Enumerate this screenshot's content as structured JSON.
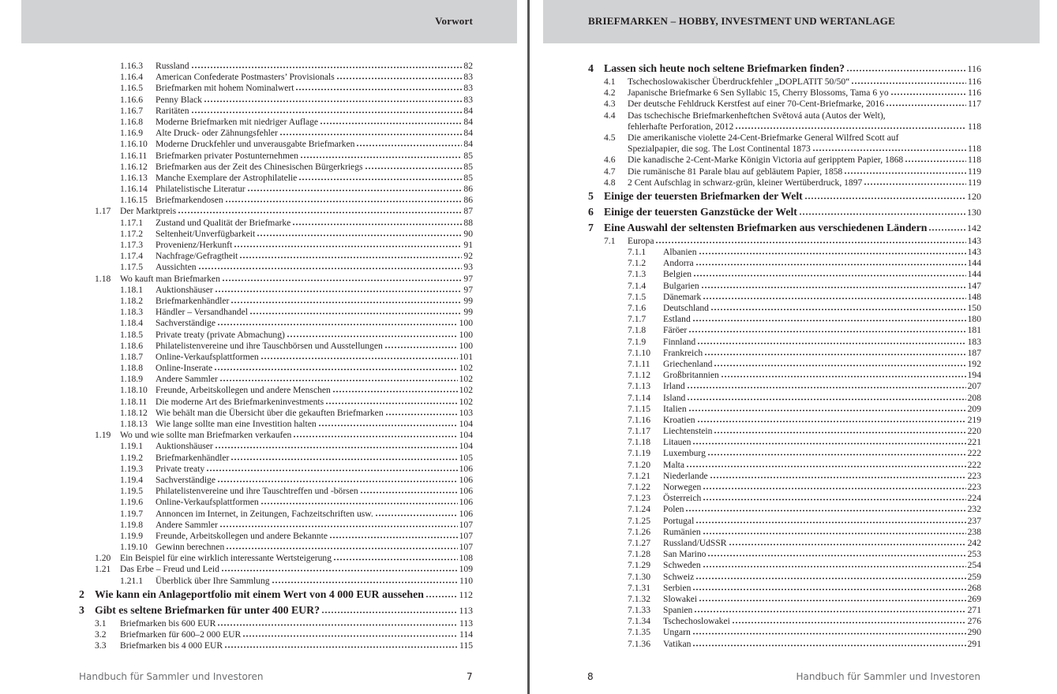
{
  "left_page": {
    "header": "Vorwort",
    "footer": "Handbuch für Sammler und Investoren",
    "page_number": "7",
    "entries": [
      {
        "level": 3,
        "num": "1.16.3",
        "title": "Russland",
        "page": "82"
      },
      {
        "level": 3,
        "num": "1.16.4",
        "title": "American Confederate Postmasters’ Provisionals",
        "page": "83"
      },
      {
        "level": 3,
        "num": "1.16.5",
        "title": "Briefmarken mit hohem Nominalwert",
        "page": "83"
      },
      {
        "level": 3,
        "num": "1.16.6",
        "title": "Penny Black",
        "page": "83"
      },
      {
        "level": 3,
        "num": "1.16.7",
        "title": "Raritäten",
        "page": "84"
      },
      {
        "level": 3,
        "num": "1.16.8",
        "title": "Moderne Briefmarken mit niedriger Auflage",
        "page": "84"
      },
      {
        "level": 3,
        "num": "1.16.9",
        "title": "Alte Druck- oder Zähnungsfehler",
        "page": "84"
      },
      {
        "level": 3,
        "num": "1.16.10",
        "title": "Moderne Druckfehler und unverausgabte Briefmarken",
        "page": "84"
      },
      {
        "level": 3,
        "num": "1.16.11",
        "title": "Briefmarken privater Postunternehmen",
        "page": "85"
      },
      {
        "level": 3,
        "num": "1.16.12",
        "title": "Briefmarken aus der Zeit des Chinesischen Bürgerkriegs",
        "page": "85"
      },
      {
        "level": 3,
        "num": "1.16.13",
        "title": "Manche Exemplare der Astrophilatelie",
        "page": "85"
      },
      {
        "level": 3,
        "num": "1.16.14",
        "title": "Philatelistische Literatur",
        "page": "86"
      },
      {
        "level": 3,
        "num": "1.16.15",
        "title": "Briefmarkendosen",
        "page": "86"
      },
      {
        "level": 2,
        "num": "1.17",
        "title": "Der Marktpreis",
        "page": "87"
      },
      {
        "level": 3,
        "num": "1.17.1",
        "title": "Zustand und Qualität der Briefmarke",
        "page": "88"
      },
      {
        "level": 3,
        "num": "1.17.2",
        "title": "Seltenheit/Unverfügbarkeit",
        "page": "90"
      },
      {
        "level": 3,
        "num": "1.17.3",
        "title": "Provenienz/Herkunft",
        "page": "91"
      },
      {
        "level": 3,
        "num": "1.17.4",
        "title": "Nachfrage/Gefragtheit",
        "page": "92"
      },
      {
        "level": 3,
        "num": "1.17.5",
        "title": "Aussichten",
        "page": "93"
      },
      {
        "level": 2,
        "num": "1.18",
        "title": "Wo kauft man Briefmarken",
        "page": "97"
      },
      {
        "level": 3,
        "num": "1.18.1",
        "title": "Auktionshäuser",
        "page": "97"
      },
      {
        "level": 3,
        "num": "1.18.2",
        "title": "Briefmarkenhändler",
        "page": "99"
      },
      {
        "level": 3,
        "num": "1.18.3",
        "title": "Händler – Versandhandel",
        "page": "99"
      },
      {
        "level": 3,
        "num": "1.18.4",
        "title": "Sachverständige",
        "page": "100"
      },
      {
        "level": 3,
        "num": "1.18.5",
        "title": "Private treaty (private Abmachung)",
        "page": "100"
      },
      {
        "level": 3,
        "num": "1.18.6",
        "title": "Philatelistenvereine und ihre Tauschbörsen und Ausstellungen",
        "page": "100"
      },
      {
        "level": 3,
        "num": "1.18.7",
        "title": "Online-Verkaufsplattformen",
        "page": "101"
      },
      {
        "level": 3,
        "num": "1.18.8",
        "title": "Online-Inserate",
        "page": "102"
      },
      {
        "level": 3,
        "num": "1.18.9",
        "title": "Andere Sammler",
        "page": "102"
      },
      {
        "level": 3,
        "num": "1.18.10",
        "title": "Freunde, Arbeitskollegen und andere Menschen",
        "page": "102"
      },
      {
        "level": 3,
        "num": "1.18.11",
        "title": "Die moderne Art des Briefmarkeninvestments",
        "page": "102"
      },
      {
        "level": 3,
        "num": "1.18.12",
        "title": "Wie behält man die Übersicht über die gekauften Briefmarken",
        "page": "103"
      },
      {
        "level": 3,
        "num": "1.18.13",
        "title": "Wie lange sollte man eine Investition halten",
        "page": "104"
      },
      {
        "level": 2,
        "num": "1.19",
        "title": "Wo und wie sollte man Briefmarken verkaufen",
        "page": "104"
      },
      {
        "level": 3,
        "num": "1.19.1",
        "title": "Auktionshäuser",
        "page": "104"
      },
      {
        "level": 3,
        "num": "1.19.2",
        "title": "Briefmarkenhändler",
        "page": "105"
      },
      {
        "level": 3,
        "num": "1.19.3",
        "title": "Private treaty",
        "page": "106"
      },
      {
        "level": 3,
        "num": "1.19.4",
        "title": "Sachverständige",
        "page": "106"
      },
      {
        "level": 3,
        "num": "1.19.5",
        "title": "Philatelistenvereine und ihre Tauschtreffen und -börsen",
        "page": "106"
      },
      {
        "level": 3,
        "num": "1.19.6",
        "title": "Online-Verkaufsplattformen",
        "page": "106"
      },
      {
        "level": 3,
        "num": "1.19.7",
        "title": "Annoncen im Internet, in Zeitungen, Fachzeitschriften usw.",
        "page": "106"
      },
      {
        "level": 3,
        "num": "1.19.8",
        "title": "Andere Sammler",
        "page": "107"
      },
      {
        "level": 3,
        "num": "1.19.9",
        "title": "Freunde, Arbeitskollegen und andere Bekannte",
        "page": "107"
      },
      {
        "level": 3,
        "num": "1.19.10",
        "title": "Gewinn berechnen",
        "page": "107"
      },
      {
        "level": 2,
        "num": "1.20",
        "title": "Ein Beispiel für eine wirklich interessante Wertsteigerung",
        "page": "108"
      },
      {
        "level": 2,
        "num": "1.21",
        "title": "Das Erbe – Freud und Leid",
        "page": "109"
      },
      {
        "level": 3,
        "num": "1.21.1",
        "title": "Überblick über Ihre Sammlung",
        "page": "110"
      },
      {
        "level": 1,
        "num": "2",
        "title": "Wie kann ein Anlageportfolio mit einem Wert von 4 000 EUR aussehen",
        "page": "112"
      },
      {
        "level": 1,
        "num": "3",
        "title": "Gibt es seltene Briefmarken für unter 400 EUR?",
        "page": "113"
      },
      {
        "level": 2,
        "num": "3.1",
        "title": "Briefmarken bis 600 EUR",
        "page": "113"
      },
      {
        "level": 2,
        "num": "3.2",
        "title": "Briefmarken für 600–2 000 EUR",
        "page": "114"
      },
      {
        "level": 2,
        "num": "3.3",
        "title": "Briefmarken bis 4 000 EUR",
        "page": "115"
      }
    ]
  },
  "right_page": {
    "header": "BRIEFMARKEN – HOBBY, INVESTMENT UND WERTANLAGE",
    "footer": "Handbuch für Sammler und Investoren",
    "page_number": "8",
    "entries": [
      {
        "level": 1,
        "num": "4",
        "title": "Lassen sich heute noch seltene Briefmarken finden?",
        "page": "116"
      },
      {
        "level": 2,
        "num": "4.1",
        "title": "Tschechoslowakischer Überdruckfehler „DOPLATIT 50/50“",
        "page": "116"
      },
      {
        "level": 2,
        "num": "4.2",
        "title": "Japanische Briefmarke 6 Sen Syllabic 15, Cherry Blossoms, Tama 6 yo",
        "page": "116"
      },
      {
        "level": 2,
        "num": "4.3",
        "title": "Der deutsche Fehldruck Kerstfest auf einer 70-Cent-Briefmarke, 2016",
        "page": "117"
      },
      {
        "level": 2,
        "num": "4.4",
        "title": "Das tschechische Briefmarkenheftchen Světová auta (Autos der Welt),",
        "title2": "fehlerhafte Perforation, 2012",
        "page": "118"
      },
      {
        "level": 2,
        "num": "4.5",
        "title": "Die amerikanische violette 24-Cent-Briefmarke General Wilfred Scott auf",
        "title2": "Spezialpapier, die sog. The Lost Continental 1873",
        "page": "118"
      },
      {
        "level": 2,
        "num": "4.6",
        "title": "Die kanadische 2-Cent-Marke Königin Victoria auf geripptem Papier, 1868",
        "page": "118"
      },
      {
        "level": 2,
        "num": "4.7",
        "title": "Die rumänische 81 Parale blau auf gebläutem Papier, 1858",
        "page": "119"
      },
      {
        "level": 2,
        "num": "4.8",
        "title": "2 Cent Aufschlag in schwarz-grün, kleiner Wertüberdruck, 1897",
        "page": "119"
      },
      {
        "level": 1,
        "num": "5",
        "title": "Einige der teuersten Briefmarken der Welt",
        "page": "120"
      },
      {
        "level": 1,
        "num": "6",
        "title": "Einige der teuersten Ganzstücke der Welt",
        "page": "130"
      },
      {
        "level": 1,
        "num": "7",
        "title": "Eine Auswahl der seltensten Briefmarken aus verschiedenen Ländern",
        "page": "142"
      },
      {
        "level": 2,
        "num": "7.1",
        "title": "Europa",
        "page": "143"
      },
      {
        "level": 3,
        "num": "7.1.1",
        "title": "Albanien",
        "page": "143"
      },
      {
        "level": 3,
        "num": "7.1.2",
        "title": "Andorra",
        "page": "144"
      },
      {
        "level": 3,
        "num": "7.1.3",
        "title": "Belgien",
        "page": "144"
      },
      {
        "level": 3,
        "num": "7.1.4",
        "title": "Bulgarien",
        "page": "147"
      },
      {
        "level": 3,
        "num": "7.1.5",
        "title": "Dänemark",
        "page": "148"
      },
      {
        "level": 3,
        "num": "7.1.6",
        "title": "Deutschland",
        "page": "150"
      },
      {
        "level": 3,
        "num": "7.1.7",
        "title": "Estland",
        "page": "180"
      },
      {
        "level": 3,
        "num": "7.1.8",
        "title": "Färöer",
        "page": "181"
      },
      {
        "level": 3,
        "num": "7.1.9",
        "title": "Finnland",
        "page": "183"
      },
      {
        "level": 3,
        "num": "7.1.10",
        "title": "Frankreich",
        "page": "187"
      },
      {
        "level": 3,
        "num": "7.1.11",
        "title": "Griechenland",
        "page": "192"
      },
      {
        "level": 3,
        "num": "7.1.12",
        "title": "Großbritannien",
        "page": "194"
      },
      {
        "level": 3,
        "num": "7.1.13",
        "title": "Irland",
        "page": "207"
      },
      {
        "level": 3,
        "num": "7.1.14",
        "title": "Island",
        "page": "208"
      },
      {
        "level": 3,
        "num": "7.1.15",
        "title": "Italien",
        "page": "209"
      },
      {
        "level": 3,
        "num": "7.1.16",
        "title": "Kroatien",
        "page": "219"
      },
      {
        "level": 3,
        "num": "7.1.17",
        "title": "Liechtenstein",
        "page": "220"
      },
      {
        "level": 3,
        "num": "7.1.18",
        "title": "Litauen",
        "page": "221"
      },
      {
        "level": 3,
        "num": "7.1.19",
        "title": "Luxemburg",
        "page": "222"
      },
      {
        "level": 3,
        "num": "7.1.20",
        "title": "Malta",
        "page": "222"
      },
      {
        "level": 3,
        "num": "7.1.21",
        "title": "Niederlande",
        "page": "223"
      },
      {
        "level": 3,
        "num": "7.1.22",
        "title": "Norwegen",
        "page": "223"
      },
      {
        "level": 3,
        "num": "7.1.23",
        "title": "Österreich",
        "page": "224"
      },
      {
        "level": 3,
        "num": "7.1.24",
        "title": "Polen",
        "page": "232"
      },
      {
        "level": 3,
        "num": "7.1.25",
        "title": "Portugal",
        "page": "237"
      },
      {
        "level": 3,
        "num": "7.1.26",
        "title": "Rumänien",
        "page": "238"
      },
      {
        "level": 3,
        "num": "7.1.27",
        "title": "Russland/UdSSR",
        "page": "242"
      },
      {
        "level": 3,
        "num": "7.1.28",
        "title": "San Marino",
        "page": "253"
      },
      {
        "level": 3,
        "num": "7.1.29",
        "title": "Schweden",
        "page": "254"
      },
      {
        "level": 3,
        "num": "7.1.30",
        "title": "Schweiz",
        "page": "259"
      },
      {
        "level": 3,
        "num": "7.1.31",
        "title": "Serbien",
        "page": "268"
      },
      {
        "level": 3,
        "num": "7.1.32",
        "title": "Slowakei",
        "page": "269"
      },
      {
        "level": 3,
        "num": "7.1.33",
        "title": "Spanien",
        "page": "271"
      },
      {
        "level": 3,
        "num": "7.1.34",
        "title": "Tschechoslowakei",
        "page": "276"
      },
      {
        "level": 3,
        "num": "7.1.35",
        "title": "Ungarn",
        "page": "290"
      },
      {
        "level": 3,
        "num": "7.1.36",
        "title": "Vatikan",
        "page": "291"
      }
    ]
  },
  "colors": {
    "header_bar": "#d1d2d4",
    "divider": "#555555",
    "text": "#231f20",
    "footer_text": "#6d6e70"
  }
}
